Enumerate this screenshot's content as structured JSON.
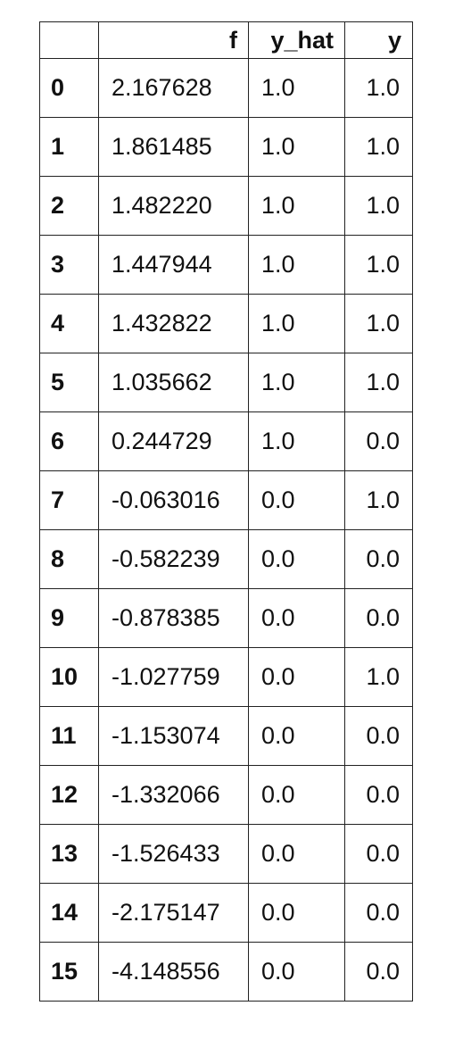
{
  "table": {
    "columns": [
      "",
      "f",
      "y_hat",
      "y"
    ],
    "rows": [
      {
        "index": "0",
        "f": "2.167628",
        "y_hat": "1.0",
        "y": "1.0"
      },
      {
        "index": "1",
        "f": "1.861485",
        "y_hat": "1.0",
        "y": "1.0"
      },
      {
        "index": "2",
        "f": "1.482220",
        "y_hat": "1.0",
        "y": "1.0"
      },
      {
        "index": "3",
        "f": "1.447944",
        "y_hat": "1.0",
        "y": "1.0"
      },
      {
        "index": "4",
        "f": "1.432822",
        "y_hat": "1.0",
        "y": "1.0"
      },
      {
        "index": "5",
        "f": "1.035662",
        "y_hat": "1.0",
        "y": "1.0"
      },
      {
        "index": "6",
        "f": "0.244729",
        "y_hat": "1.0",
        "y": "0.0"
      },
      {
        "index": "7",
        "f": "-0.063016",
        "y_hat": "0.0",
        "y": "1.0"
      },
      {
        "index": "8",
        "f": "-0.582239",
        "y_hat": "0.0",
        "y": "0.0"
      },
      {
        "index": "9",
        "f": "-0.878385",
        "y_hat": "0.0",
        "y": "0.0"
      },
      {
        "index": "10",
        "f": "-1.027759",
        "y_hat": "0.0",
        "y": "1.0"
      },
      {
        "index": "11",
        "f": "-1.153074",
        "y_hat": "0.0",
        "y": "0.0"
      },
      {
        "index": "12",
        "f": "-1.332066",
        "y_hat": "0.0",
        "y": "0.0"
      },
      {
        "index": "13",
        "f": "-1.526433",
        "y_hat": "0.0",
        "y": "0.0"
      },
      {
        "index": "14",
        "f": "-2.175147",
        "y_hat": "0.0",
        "y": "0.0"
      },
      {
        "index": "15",
        "f": "-4.148556",
        "y_hat": "0.0",
        "y": "0.0"
      }
    ]
  }
}
